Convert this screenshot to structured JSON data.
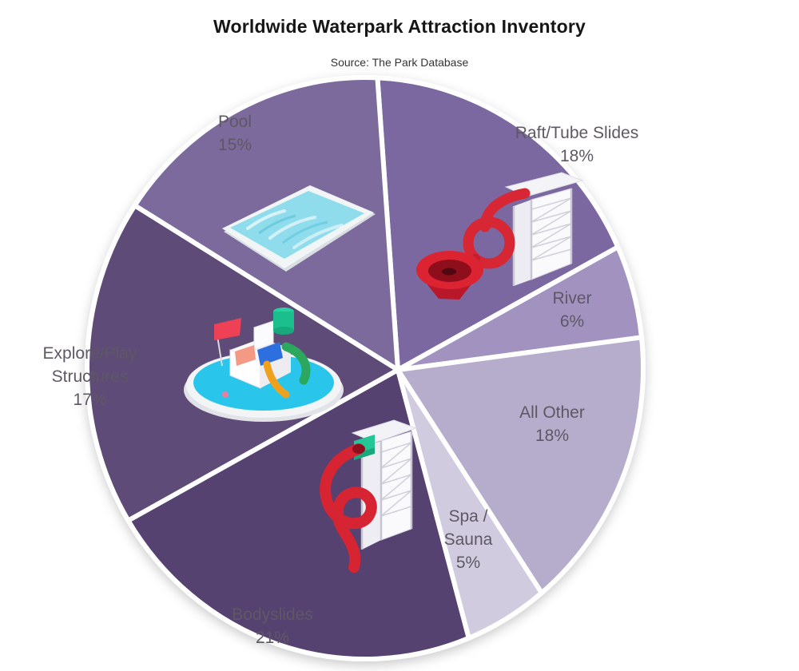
{
  "header": {
    "title": "Worldwide Waterpark Attraction Inventory",
    "subtitle": "Source: The Park Database"
  },
  "chart_data": {
    "type": "pie",
    "title": "Worldwide Waterpark Attraction Inventory",
    "source": "Source: The Park Database",
    "start_angle_deg": -94,
    "direction": "clockwise",
    "gap_color": "#ffffff",
    "label_color": "#5e5864",
    "slices": [
      {
        "label": "Raft/Tube Slides",
        "value": 18,
        "pct_label": "18%",
        "color": "#7b67a0",
        "icon": "raft-tube-slide-icon"
      },
      {
        "label": "River",
        "value": 6,
        "pct_label": "6%",
        "color": "#a192c0",
        "icon": null
      },
      {
        "label": "All Other",
        "value": 18,
        "pct_label": "18%",
        "color": "#b5adcb",
        "icon": null
      },
      {
        "label": "Spa /\nSauna",
        "value": 5,
        "pct_label": "5%",
        "color": "#d1cbdf",
        "icon": null
      },
      {
        "label": "Bodyslides",
        "value": 21,
        "pct_label": "21%",
        "color": "#564370",
        "icon": "body-slide-spiral-icon"
      },
      {
        "label": "Explore/Play\nStructures",
        "value": 17,
        "pct_label": "17%",
        "color": "#5e4c77",
        "icon": "play-structure-icon"
      },
      {
        "label": "Pool",
        "value": 15,
        "pct_label": "15%",
        "color": "#7c6b9d",
        "icon": "pool-icon"
      }
    ],
    "icons": [
      "pool-icon",
      "raft-tube-slide-icon",
      "play-structure-icon",
      "body-slide-spiral-icon"
    ]
  }
}
